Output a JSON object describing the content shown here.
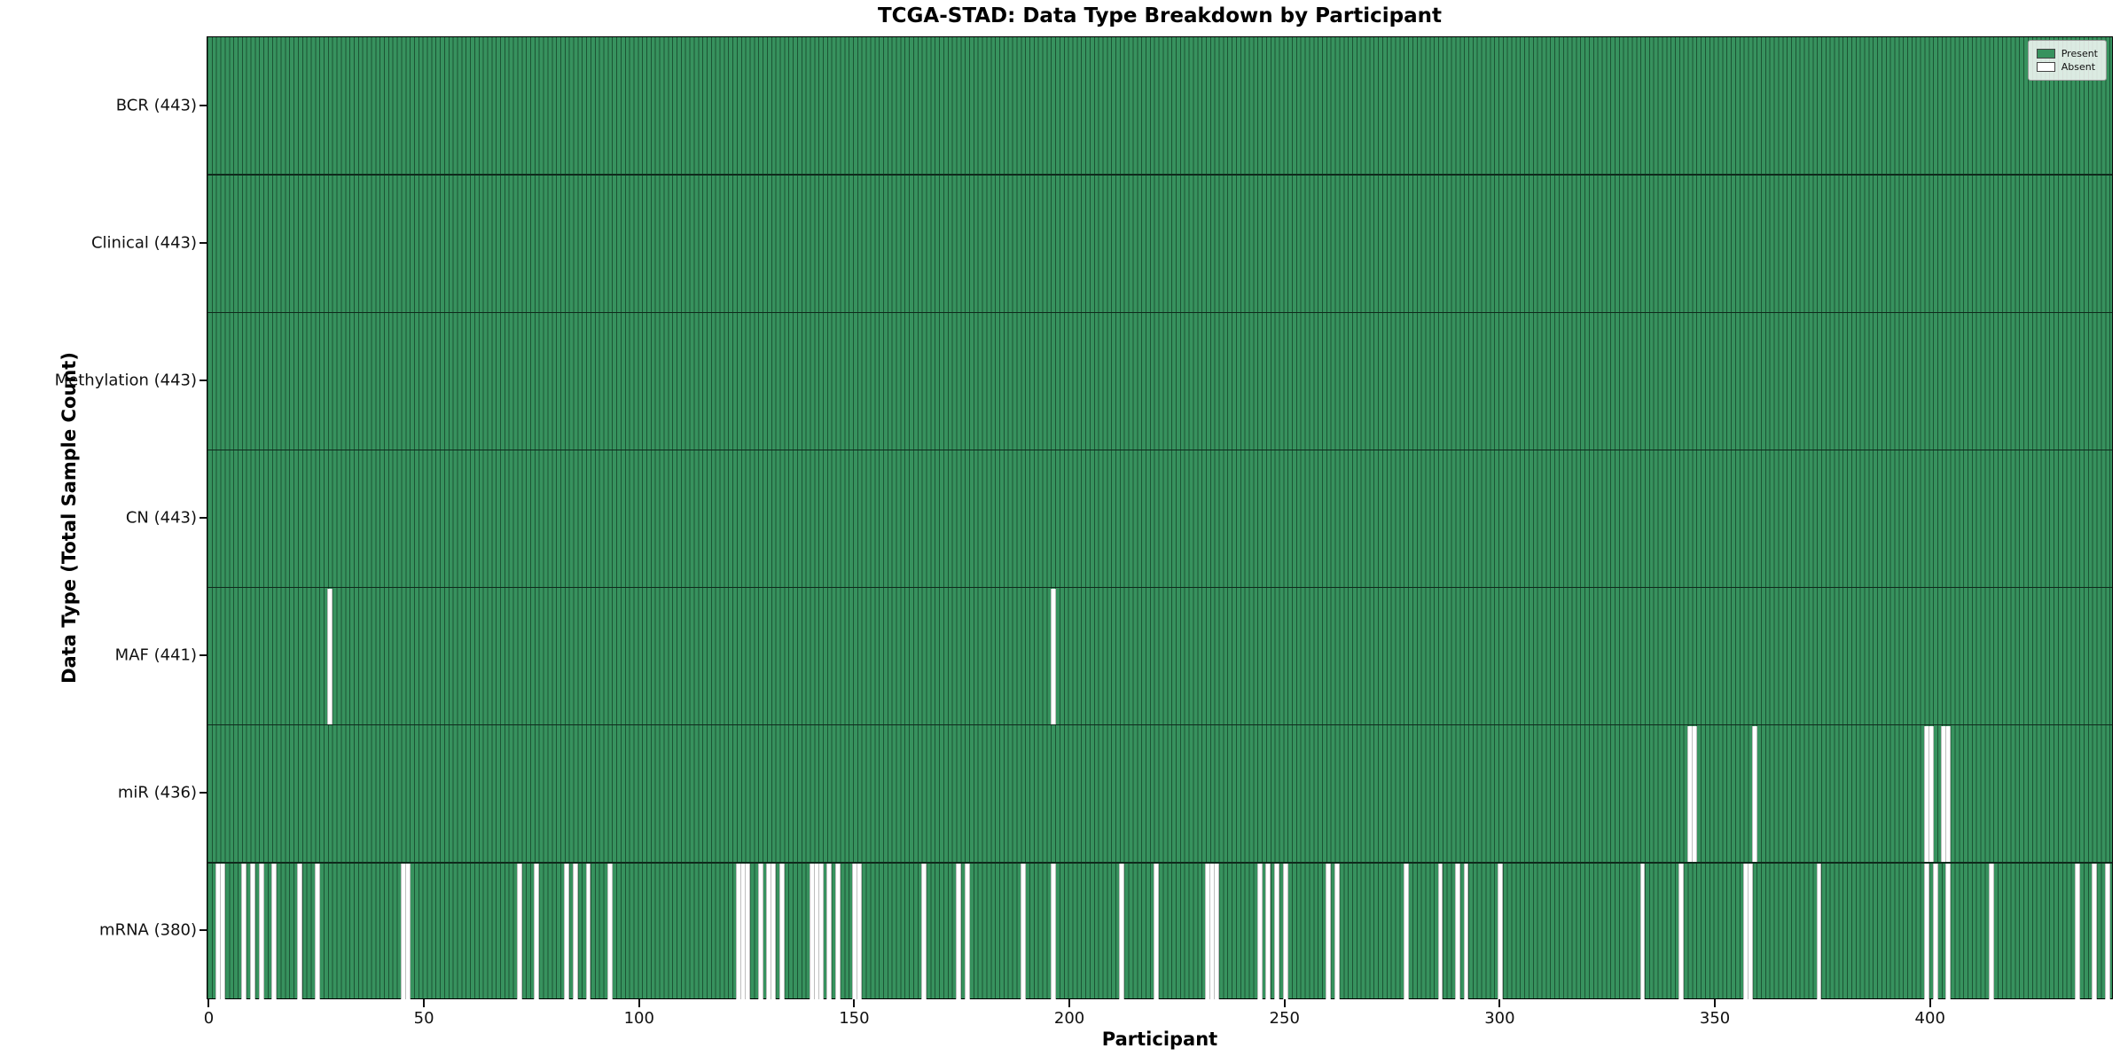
{
  "chart_data": {
    "type": "heatmap",
    "title": "TCGA-STAD: Data Type Breakdown by Participant",
    "xlabel": "Participant",
    "ylabel": "Data Type (Total Sample Count)",
    "n_participants": 443,
    "x_ticks": [
      0,
      50,
      100,
      150,
      200,
      250,
      300,
      350,
      400
    ],
    "colors": {
      "present": "#37925e",
      "absent": "#ffffff",
      "cell_edge": "#1c5434",
      "row_separator": "#0f2a1c",
      "spine": "#000000"
    },
    "legend": [
      {
        "label": "Present",
        "color": "#37925e"
      },
      {
        "label": "Absent",
        "color": "#ffffff"
      }
    ],
    "legend_position": "upper right",
    "grid": false,
    "rows": [
      {
        "label": "BCR (443)",
        "name": "BCR",
        "total": 443,
        "absent_participants": []
      },
      {
        "label": "Clinical (443)",
        "name": "Clinical",
        "total": 443,
        "absent_participants": []
      },
      {
        "label": "Methylation (443)",
        "name": "Methylation",
        "total": 443,
        "absent_participants": []
      },
      {
        "label": "CN (443)",
        "name": "CN",
        "total": 443,
        "absent_participants": []
      },
      {
        "label": "MAF (441)",
        "name": "MAF",
        "total": 441,
        "absent_participants": [
          28,
          196
        ]
      },
      {
        "label": "miR (436)",
        "name": "miR",
        "total": 436,
        "absent_participants": [
          344,
          345,
          359,
          399,
          400,
          403,
          404
        ]
      },
      {
        "label": "mRNA (380)",
        "name": "mRNA",
        "total": 380,
        "absent_participants": [
          2,
          3,
          8,
          10,
          12,
          15,
          21,
          25,
          45,
          46,
          72,
          76,
          83,
          85,
          88,
          93,
          123,
          124,
          125,
          128,
          130,
          131,
          133,
          140,
          141,
          142,
          144,
          146,
          150,
          151,
          166,
          174,
          176,
          189,
          196,
          212,
          220,
          232,
          233,
          234,
          244,
          246,
          248,
          250,
          260,
          262,
          278,
          286,
          290,
          292,
          300,
          333,
          342,
          357,
          358,
          374,
          399,
          401,
          404,
          414,
          434,
          438,
          441
        ]
      }
    ]
  }
}
